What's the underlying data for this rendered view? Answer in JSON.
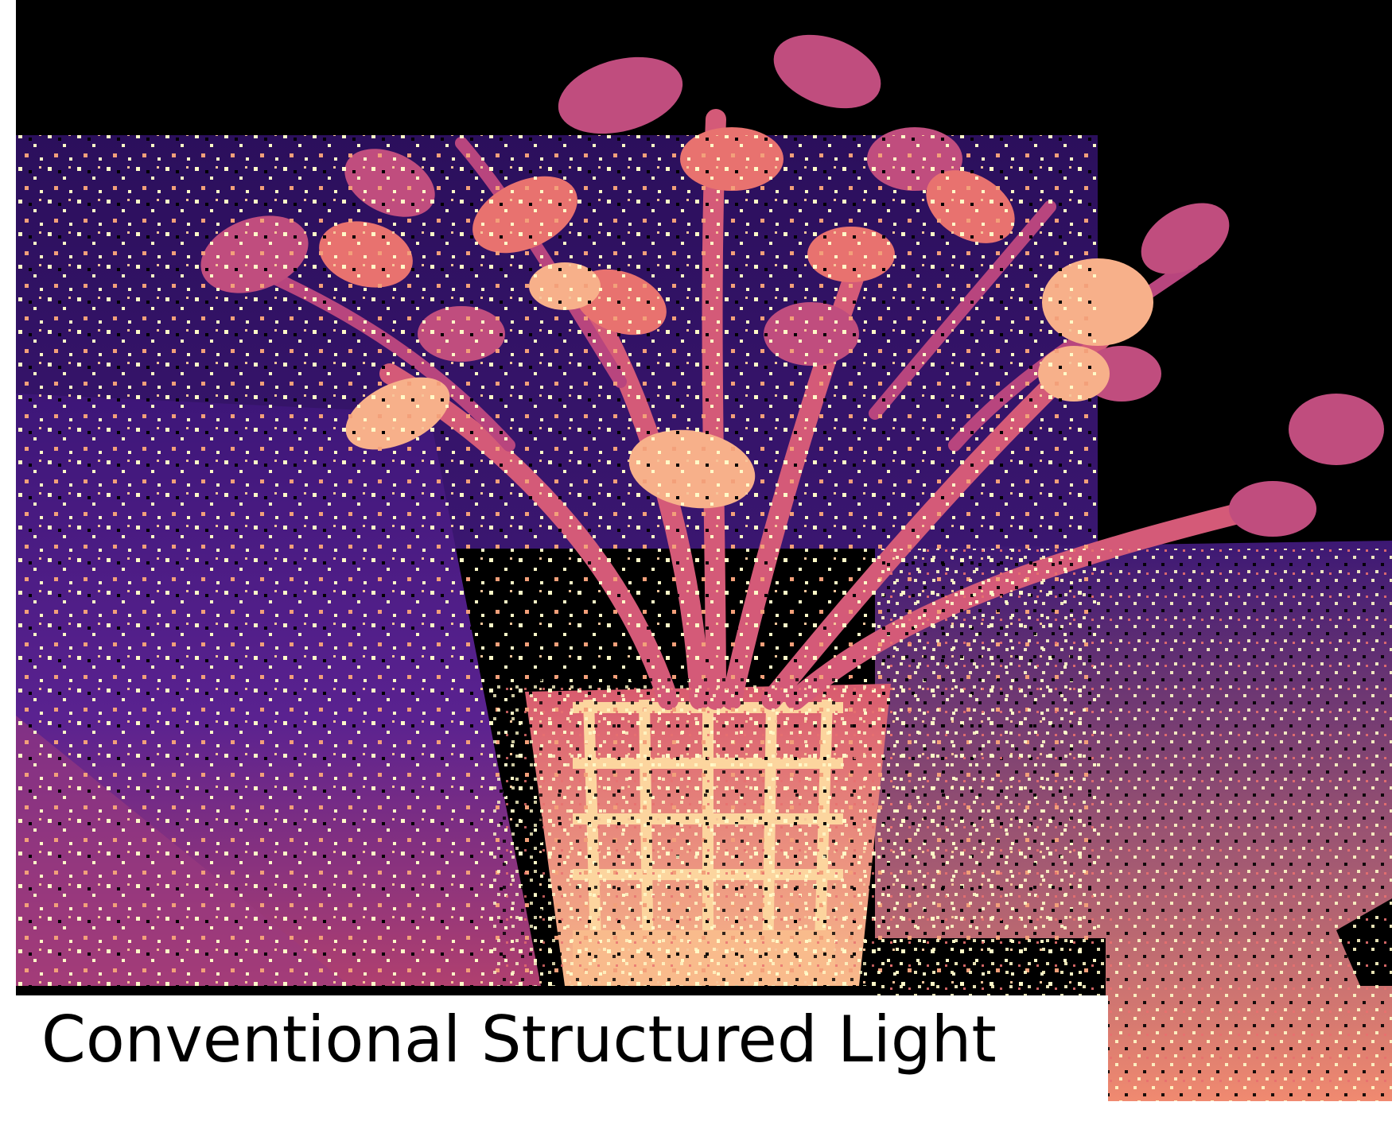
{
  "caption": "Conventional Structured Light",
  "colormap": {
    "name": "magma",
    "background": "#000000",
    "far": "#2a0f5e",
    "mid": "#7b2c8c",
    "near": "#e8606f",
    "nearest": "#fcd8a0",
    "noise_speck": "#fffac8"
  },
  "scene": {
    "subject": "potted plant",
    "wall_tone": "#3a1670",
    "floor_tone_left": "#8b2e8c",
    "pot_tone": "#f7b08a"
  }
}
